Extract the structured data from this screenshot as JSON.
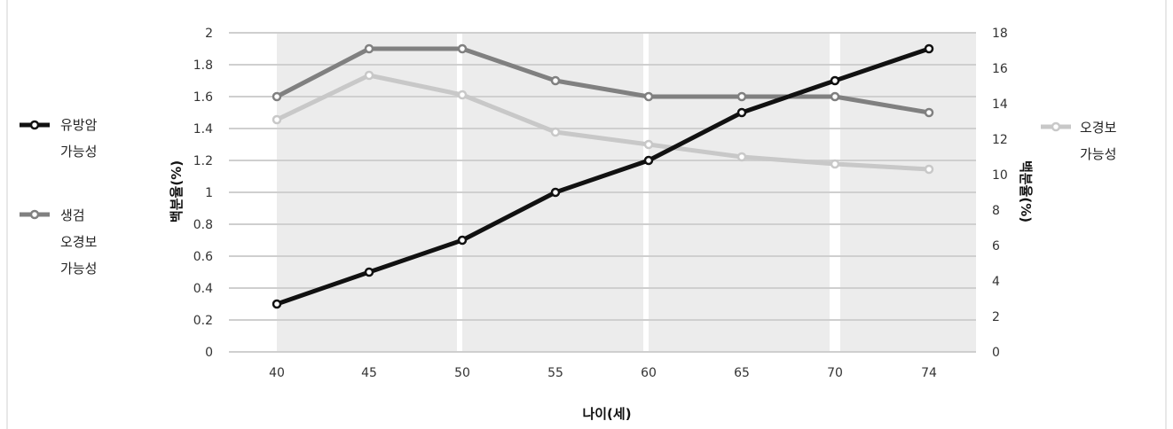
{
  "chart_data": {
    "type": "line",
    "x": [
      40,
      45,
      50,
      55,
      60,
      65,
      70,
      74
    ],
    "xlabel": "나이(세)",
    "ylabel": "백분율(%)",
    "y2label": "백분율(%)",
    "ylim": [
      0,
      2
    ],
    "y2lim": [
      0,
      18
    ],
    "yticks": [
      "0",
      "0.2",
      "0.4",
      "0.6",
      "0.8",
      "1",
      "1.2",
      "1.4",
      "1.6",
      "1.8",
      "2"
    ],
    "y2ticks": [
      "0",
      "2",
      "4",
      "6",
      "8",
      "10",
      "12",
      "14",
      "16",
      "18"
    ],
    "grid": true,
    "series": [
      {
        "name": "유방암 가능성",
        "legend_lines": [
          "유방암",
          "가능성"
        ],
        "axis": "left",
        "color": "#111111",
        "values": [
          0.3,
          0.5,
          0.7,
          1.0,
          1.2,
          1.5,
          1.7,
          1.9
        ]
      },
      {
        "name": "생검 오경보 가능성",
        "legend_lines": [
          "생검",
          "오경보",
          "가능성"
        ],
        "axis": "left",
        "color": "#808080",
        "values": [
          1.6,
          1.9,
          1.9,
          1.7,
          1.6,
          1.6,
          1.6,
          1.5
        ]
      },
      {
        "name": "오경보 가능성",
        "legend_lines": [
          "오경보",
          "가능성"
        ],
        "axis": "right",
        "color": "#c8c8c8",
        "values": [
          13.1,
          15.6,
          14.5,
          12.4,
          11.7,
          11.0,
          10.6,
          10.3
        ]
      }
    ]
  }
}
